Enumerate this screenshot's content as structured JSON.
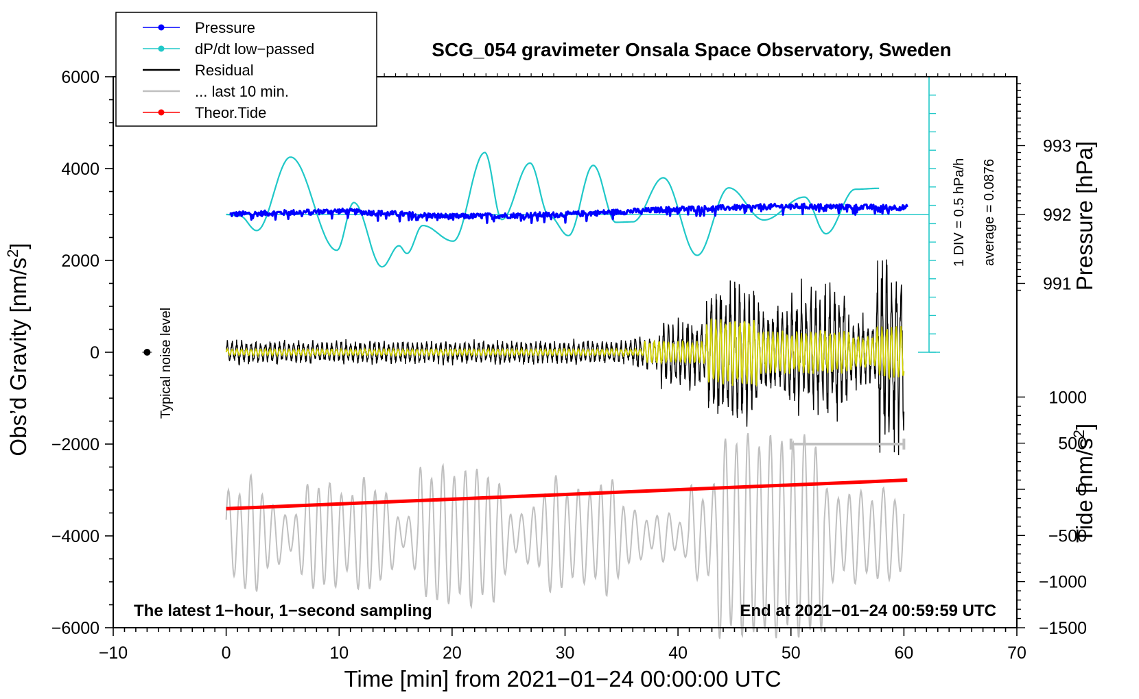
{
  "chart_data": {
    "type": "line",
    "title": "SCG_054 gravimeter Onsala Space Observatory, Sweden",
    "xlabel": "Time [min] from 2021−01−24 00:00:00 UTC",
    "ylabel_left": "Obs’d Gravity [nm/s",
    "ylabel_left_unit_sup": "2",
    "ylabel_left_end": "]",
    "ylabel_right_pressure": "Pressure [hPa]",
    "ylabel_right_tide": "Tide [nm/s",
    "ylabel_right_tide_sup": "2",
    "ylabel_right_tide_end": "]",
    "xlim": [
      -10,
      70
    ],
    "ylim_gravity": [
      -6000,
      6000
    ],
    "ylim_tide": [
      -1500,
      1000
    ],
    "pressure_range": [
      991,
      993
    ],
    "x_ticks": [
      -10,
      0,
      10,
      20,
      30,
      40,
      50,
      60,
      70
    ],
    "x_tick_labels": [
      "−10",
      "0",
      "10",
      "20",
      "30",
      "40",
      "50",
      "60",
      "70"
    ],
    "y_ticks": [
      -6000,
      -4000,
      -2000,
      0,
      2000,
      4000,
      6000
    ],
    "y_tick_labels": [
      "−6000",
      "−4000",
      "−2000",
      "0",
      "2000",
      "4000",
      "6000"
    ],
    "pressure_ticks": [
      991,
      992,
      993
    ],
    "pressure_tick_labels": [
      "991",
      "992",
      "993"
    ],
    "tide_ticks": [
      -1500,
      -1000,
      -500,
      0,
      500,
      1000
    ],
    "tide_tick_labels": [
      "−1500",
      "−1000",
      "−500",
      "0",
      "500",
      "1000"
    ],
    "legend": [
      {
        "name": "Pressure",
        "color": "#0000ff",
        "marker": true
      },
      {
        "name": "dP/dt low−passed",
        "color": "#20c8c8",
        "marker": true
      },
      {
        "name": "Residual",
        "color": "#000000",
        "marker": false
      },
      {
        "name": "... last 10 min.",
        "color": "#c0c0c0",
        "marker": false
      },
      {
        "name": "Theor.Tide",
        "color": "#ff0000",
        "marker": true
      }
    ],
    "series": [
      {
        "name": "Pressure",
        "unit": "hPa",
        "x": [
          0,
          10,
          20,
          30,
          40,
          50,
          60
        ],
        "values": [
          992.0,
          992.05,
          991.97,
          992.0,
          992.08,
          992.12,
          992.1
        ]
      },
      {
        "name": "dP/dt low−passed",
        "unit": "0.5 hPa/h per div",
        "x": [
          0,
          1.2,
          2.7,
          5.7,
          9.8,
          11.3,
          13.8,
          15.3,
          16,
          17.4,
          20.1,
          22.9,
          24.4,
          26.9,
          28.6,
          30.3,
          32.5,
          34.5,
          36,
          38.7,
          41.7,
          44.5,
          47.6,
          51.2,
          53.1,
          55.7,
          57.8
        ],
        "values": [
          3000,
          2970,
          2650,
          4250,
          2220,
          3260,
          1860,
          2320,
          2150,
          2760,
          2420,
          4350,
          2890,
          4120,
          2970,
          2540,
          4070,
          2830,
          2840,
          3800,
          2110,
          3580,
          2880,
          3380,
          2580,
          3550,
          3570
        ]
      },
      {
        "name": "Residual",
        "unit": "nm/s2",
        "x": [
          0,
          10,
          20,
          30,
          38,
          42,
          43.3,
          48,
          51.3,
          58.7,
          60
        ],
        "values": [
          0,
          0,
          0,
          0,
          0,
          0,
          1450,
          -1200,
          1700,
          2100,
          0
        ]
      },
      {
        "name": "... last 10 min.",
        "unit": "nm/s2",
        "x": [
          0,
          10,
          20,
          30,
          40,
          44.3,
          45.5,
          51.4,
          52.1,
          60
        ],
        "values": [
          -4000,
          -4300,
          -5000,
          -4700,
          -3800,
          -5900,
          -1800,
          -1600,
          -5900,
          -3300
        ]
      },
      {
        "name": "Theor.Tide",
        "unit": "nm/s2",
        "x": [
          0,
          60.3
        ],
        "values": [
          -210,
          100
        ]
      }
    ],
    "noise_level": {
      "x": -7,
      "y": 0,
      "label": "Typical noise level"
    },
    "ten_min_bar": {
      "x_start": 50,
      "x_end": 60,
      "y": -2000
    },
    "annotations": {
      "div_label": "1 DIV = 0.5 hPa/h",
      "average_label": "average = 0.0876"
    },
    "footer_left": "The latest 1−hour, 1−second sampling",
    "footer_right": "End at 2021−01−24 00:59:59 UTC"
  }
}
